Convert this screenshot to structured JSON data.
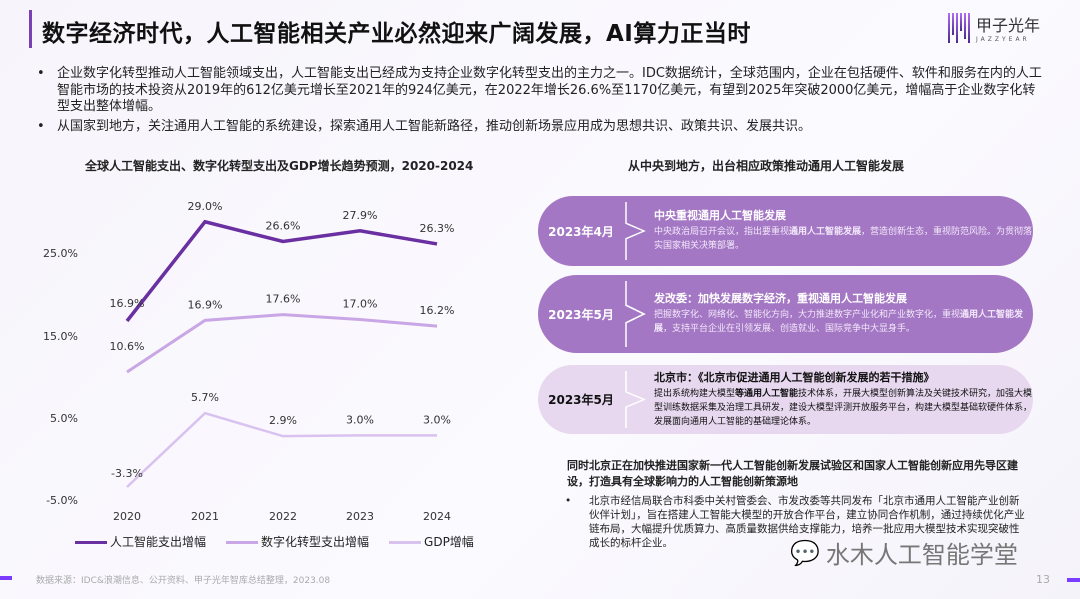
{
  "header": {
    "title": "数字经济时代，人工智能相关产业必然迎来广阔发展，AI算力正当时",
    "logo_text": "甲子光年",
    "logo_sub": "JAZZYEAR"
  },
  "bullets": [
    "企业数字化转型推动人工智能领域支出，人工智能支出已经成为支持企业数字化转型支出的主力之一。IDC数据统计，全球范围内，企业在包括硬件、软件和服务在内的人工智能市场的技术投资从2019年的612亿美元增长至2021年的924亿美元，在2022年增长26.6%至1170亿美元，有望到2025年突破2000亿美元，增幅高于企业数字化转型支出整体增幅。",
    "从国家到地方，关注通用人工智能的系统建设，探索通用人工智能新路径，推动创新场景应用成为思想共识、政策共识、发展共识。"
  ],
  "chart_data": {
    "type": "line",
    "title": "全球人工智能支出、数字化转型支出及GDP增长趋势预测，2020-2024",
    "categories": [
      "2020",
      "2021",
      "2022",
      "2023",
      "2024"
    ],
    "y_tick_labels": [
      "25.0%",
      "15.0%",
      "5.0%",
      "-5.0%"
    ],
    "grid": false,
    "legend_placement": "bottom",
    "series": [
      {
        "name": "人工智能支出增幅",
        "values": [
          16.9,
          29.0,
          26.6,
          27.9,
          26.3
        ],
        "labels": [
          "16.9%",
          "29.0%",
          "26.6%",
          "27.9%",
          "26.3%"
        ],
        "color": "#6a2fa0"
      },
      {
        "name": "数字化转型支出增幅",
        "values": [
          10.6,
          16.9,
          17.6,
          17.0,
          16.2
        ],
        "labels": [
          "10.6%",
          "16.9%",
          "17.6%",
          "17.0%",
          "16.2%"
        ],
        "color": "#c9a6e6"
      },
      {
        "name": "GDP增幅",
        "values": [
          -3.3,
          5.7,
          2.9,
          3.0,
          3.0
        ],
        "labels": [
          "-3.3%",
          "5.7%",
          "2.9%",
          "3.0%",
          "3.0%"
        ],
        "color": "#d9c2ef"
      }
    ]
  },
  "right": {
    "title": "从中央到地方，出台相应政策推动通用人工智能发展",
    "items": [
      {
        "date": "2023年4月",
        "head": "中央重视通用人工智能发展",
        "t1": "中央政治局召开会议，指出要重视",
        "em": "通用人工智能发展",
        "t2": "，营造创新生态，重视防范风险。为贯彻落实国家相关决策部署。"
      },
      {
        "date": "2023年5月",
        "head": "发改委：加快发展数字经济，重视通用人工智能发展",
        "t1": "把握数字化、网络化、智能化方向，大力推进数字产业化和产业数字化，重视",
        "em": "通用人工智能发展",
        "t2": "，支持平台企业在引领发展、创造就业、国际竞争中大显身手。"
      },
      {
        "date": "2023年5月",
        "head": "北京市：《北京市促进通用人工智能创新发展的若干措施》",
        "t1": "提出系统构建大模型",
        "em": "等通用人工智能",
        "t2": "技术体系，开展大模型创新算法及关键技术研究，加强大模型训练数据采集及治理工具研发，建设大模型评测开放服务平台，构建大模型基础软硬件体系，发展面向通用人工智能的基础理论体系。"
      }
    ],
    "beijing_title": "同时北京正在加快推进国家新一代人工智能创新发展试验区和国家人工智能创新应用先导区建设，打造具有全球影响力的人工智能创新策源地",
    "beijing_text": "北京市经信局联合市科委中关村管委会、市发改委等共同发布「北京市通用人工智能产业创新伙伴计划」，旨在搭建人工智能大模型的开放合作平台，建立协同合作机制，通过持续优化产业链布局，大幅提升优质算力、高质量数据供给支撑能力，培养一批应用大模型技术实现突破性成长的标杆企业。"
  },
  "footer": {
    "source": "数据来源：IDC&浪潮信息、公开资料、甲子光年智库总结整理，2023.08",
    "page": "13",
    "watermark": "水木人工智能学堂"
  }
}
